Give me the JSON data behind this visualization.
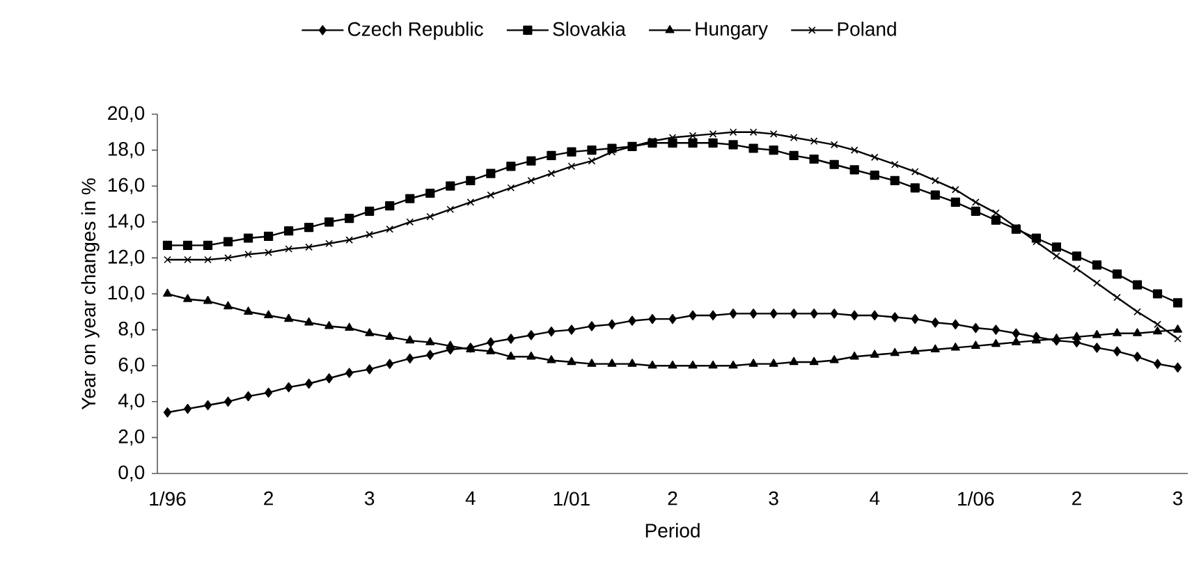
{
  "chart_data": {
    "type": "line",
    "xlabel": "Period",
    "ylabel": "Year on year changes in %",
    "categories": [
      "1/96",
      null,
      null,
      null,
      null,
      "2",
      null,
      null,
      null,
      null,
      "3",
      null,
      null,
      null,
      null,
      "4",
      null,
      null,
      null,
      null,
      "1/01",
      null,
      null,
      null,
      null,
      "2",
      null,
      null,
      null,
      null,
      "3",
      null,
      null,
      null,
      null,
      "4",
      null,
      null,
      null,
      null,
      "1/06",
      null,
      null,
      null,
      null,
      "2",
      null,
      null,
      null,
      null,
      "3"
    ],
    "series": [
      {
        "name": "Czech Republic",
        "color": "#000000",
        "marker": "diamond",
        "values": [
          3.4,
          3.6,
          3.8,
          4.0,
          4.3,
          4.5,
          4.8,
          5.0,
          5.3,
          5.6,
          5.8,
          6.1,
          6.4,
          6.6,
          6.9,
          7.0,
          7.3,
          7.5,
          7.7,
          7.9,
          8.0,
          8.2,
          8.3,
          8.5,
          8.6,
          8.6,
          8.8,
          8.8,
          8.9,
          8.9,
          8.9,
          8.9,
          8.9,
          8.9,
          8.8,
          8.8,
          8.7,
          8.6,
          8.4,
          8.3,
          8.1,
          8.0,
          7.8,
          7.6,
          7.4,
          7.3,
          7.0,
          6.8,
          6.5,
          6.1,
          5.9
        ]
      },
      {
        "name": "Slovakia",
        "color": "#000000",
        "marker": "square",
        "values": [
          12.7,
          12.7,
          12.7,
          12.9,
          13.1,
          13.2,
          13.5,
          13.7,
          14.0,
          14.2,
          14.6,
          14.9,
          15.3,
          15.6,
          16.0,
          16.3,
          16.7,
          17.1,
          17.4,
          17.7,
          17.9,
          18.0,
          18.1,
          18.2,
          18.4,
          18.4,
          18.4,
          18.4,
          18.3,
          18.1,
          18.0,
          17.7,
          17.5,
          17.2,
          16.9,
          16.6,
          16.3,
          15.9,
          15.5,
          15.1,
          14.6,
          14.1,
          13.6,
          13.1,
          12.6,
          12.1,
          11.6,
          11.1,
          10.5,
          10.0,
          9.5
        ]
      },
      {
        "name": "Hungary",
        "color": "#000000",
        "marker": "triangle",
        "values": [
          10.0,
          9.7,
          9.6,
          9.3,
          9.0,
          8.8,
          8.6,
          8.4,
          8.2,
          8.1,
          7.8,
          7.6,
          7.4,
          7.3,
          7.1,
          6.9,
          6.8,
          6.5,
          6.5,
          6.3,
          6.2,
          6.1,
          6.1,
          6.1,
          6.0,
          6.0,
          6.0,
          6.0,
          6.0,
          6.1,
          6.1,
          6.2,
          6.2,
          6.3,
          6.5,
          6.6,
          6.7,
          6.8,
          6.9,
          7.0,
          7.1,
          7.2,
          7.3,
          7.4,
          7.5,
          7.6,
          7.7,
          7.8,
          7.8,
          7.9,
          8.0
        ]
      },
      {
        "name": "Poland",
        "color": "#000000",
        "marker": "cross",
        "values": [
          11.9,
          11.9,
          11.9,
          12.0,
          12.2,
          12.3,
          12.5,
          12.6,
          12.8,
          13.0,
          13.3,
          13.6,
          14.0,
          14.3,
          14.7,
          15.1,
          15.5,
          15.9,
          16.3,
          16.7,
          17.1,
          17.4,
          17.9,
          18.2,
          18.5,
          18.7,
          18.8,
          18.9,
          19.0,
          19.0,
          18.9,
          18.7,
          18.5,
          18.3,
          18.0,
          17.6,
          17.2,
          16.8,
          16.3,
          15.8,
          15.1,
          14.5,
          13.7,
          12.9,
          12.1,
          11.4,
          10.6,
          9.8,
          9.0,
          8.3,
          7.5
        ]
      }
    ],
    "ylim": [
      0,
      20
    ],
    "yticks": [
      {
        "value": 0,
        "label": "0,0"
      },
      {
        "value": 2,
        "label": "2,0"
      },
      {
        "value": 4,
        "label": "4,0"
      },
      {
        "value": 6,
        "label": "6,0"
      },
      {
        "value": 8,
        "label": "8,0"
      },
      {
        "value": 10,
        "label": "10,0"
      },
      {
        "value": 12,
        "label": "12,0"
      },
      {
        "value": 14,
        "label": "14,0"
      },
      {
        "value": 16,
        "label": "16,0"
      },
      {
        "value": 18,
        "label": "18,0"
      },
      {
        "value": 20,
        "label": "20,0"
      }
    ],
    "legend": "top",
    "grid": false,
    "line_style": "solid"
  }
}
